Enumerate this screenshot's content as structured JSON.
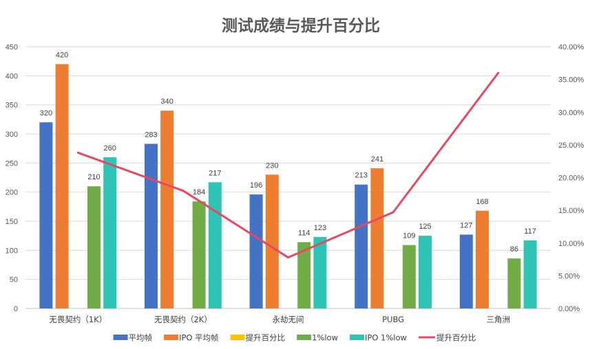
{
  "chart_data": {
    "type": "bar",
    "title": "测试成绩与提升百分比",
    "categories": [
      "无畏契约（1K）",
      "无畏契约（2K）",
      "永劫无间",
      "PUBG",
      "三角洲"
    ],
    "series": [
      {
        "name": "平均帧",
        "values": [
          320,
          283,
          196,
          213,
          127
        ],
        "color": "#4472C4"
      },
      {
        "name": "IPO 平均帧",
        "values": [
          420,
          340,
          230,
          241,
          168
        ],
        "color": "#ED7D31"
      },
      {
        "name": "提升百分比",
        "values": [
          null,
          null,
          null,
          null,
          null
        ],
        "color": "#FFC000"
      },
      {
        "name": "1%low",
        "values": [
          210,
          184,
          114,
          109,
          86
        ],
        "color": "#70AD47"
      },
      {
        "name": "IPO 1%low",
        "values": [
          260,
          217,
          123,
          125,
          117
        ],
        "color": "#2EC4B6"
      }
    ],
    "line_series": {
      "name": "提升百分比",
      "axis": "right",
      "values": [
        23.8,
        18.0,
        7.8,
        14.7,
        36.0
      ],
      "color": "#E8485F"
    },
    "ylim": [
      0,
      450
    ],
    "y_ticks": [
      "0",
      "50",
      "100",
      "150",
      "200",
      "250",
      "300",
      "350",
      "400",
      "450"
    ],
    "y2lim": [
      0,
      40
    ],
    "y2_ticks": [
      "0.00%",
      "5.00%",
      "10.00%",
      "15.00%",
      "20.00%",
      "25.00%",
      "30.00%",
      "35.00%",
      "40.00%"
    ],
    "grid": true,
    "legend_position": "bottom"
  }
}
